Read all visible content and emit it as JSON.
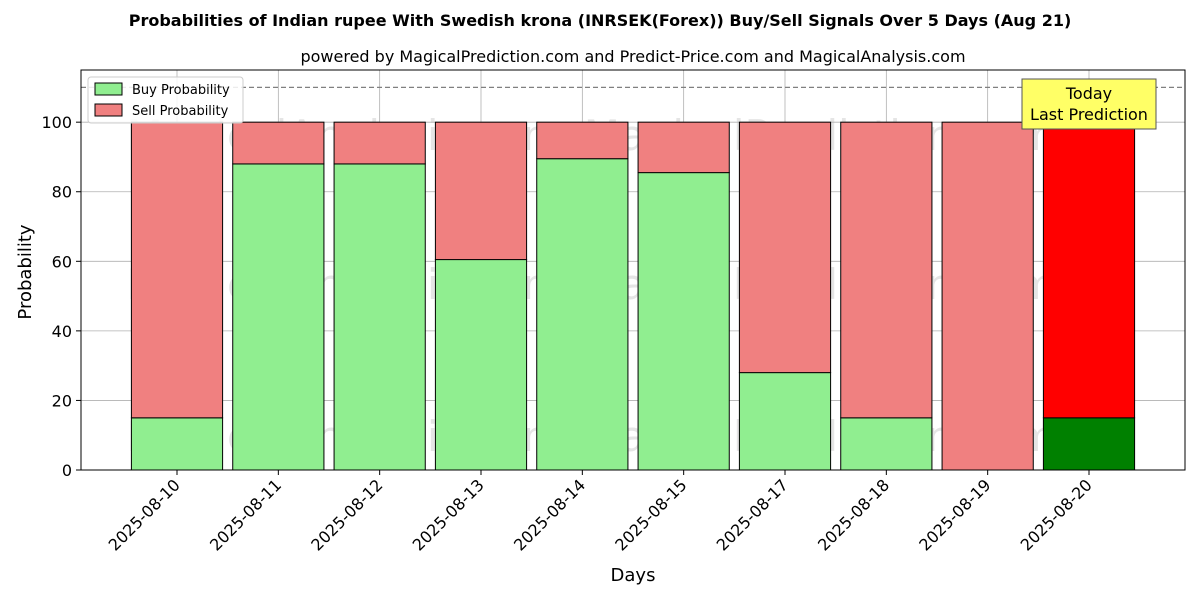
{
  "chart_data": {
    "type": "bar",
    "stacked": true,
    "title": "Probabilities of Indian rupee With Swedish krona (INRSEK(Forex)) Buy/Sell Signals Over 5 Days (Aug 21)",
    "subtitle": "powered by MagicalPrediction.com and Predict-Price.com and MagicalAnalysis.com",
    "xlabel": "Days",
    "ylabel": "Probability",
    "ylim": [
      0,
      115
    ],
    "yticks": [
      0,
      20,
      40,
      60,
      80,
      100
    ],
    "grid": true,
    "legend_position": "upper-left",
    "reference_line": 110,
    "categories": [
      "2025-08-10",
      "2025-08-11",
      "2025-08-12",
      "2025-08-13",
      "2025-08-14",
      "2025-08-15",
      "2025-08-17",
      "2025-08-18",
      "2025-08-19",
      "2025-08-20"
    ],
    "series": [
      {
        "name": "Buy Probability",
        "color": "#90ee90",
        "values": [
          15,
          88,
          88,
          60.5,
          89.5,
          85.5,
          28,
          15,
          0,
          15
        ]
      },
      {
        "name": "Sell Probability",
        "color": "#f08080",
        "values": [
          85,
          12,
          12,
          39.5,
          10.5,
          14.5,
          72,
          85,
          100,
          85
        ]
      }
    ],
    "highlight": {
      "index": 9,
      "buy_color": "#008000",
      "sell_color": "#ff0000"
    },
    "annotation": {
      "lines": [
        "Today",
        "Last Prediction"
      ],
      "background": "#ffff66"
    },
    "watermarks": [
      "MagicalAnalysis.com",
      "MagicalPrediction.com",
      "MagicalAnalysis.com",
      "MagicalPrediction.com",
      "MagicalAnalysis.com",
      "MagicalPrediction.com"
    ]
  }
}
